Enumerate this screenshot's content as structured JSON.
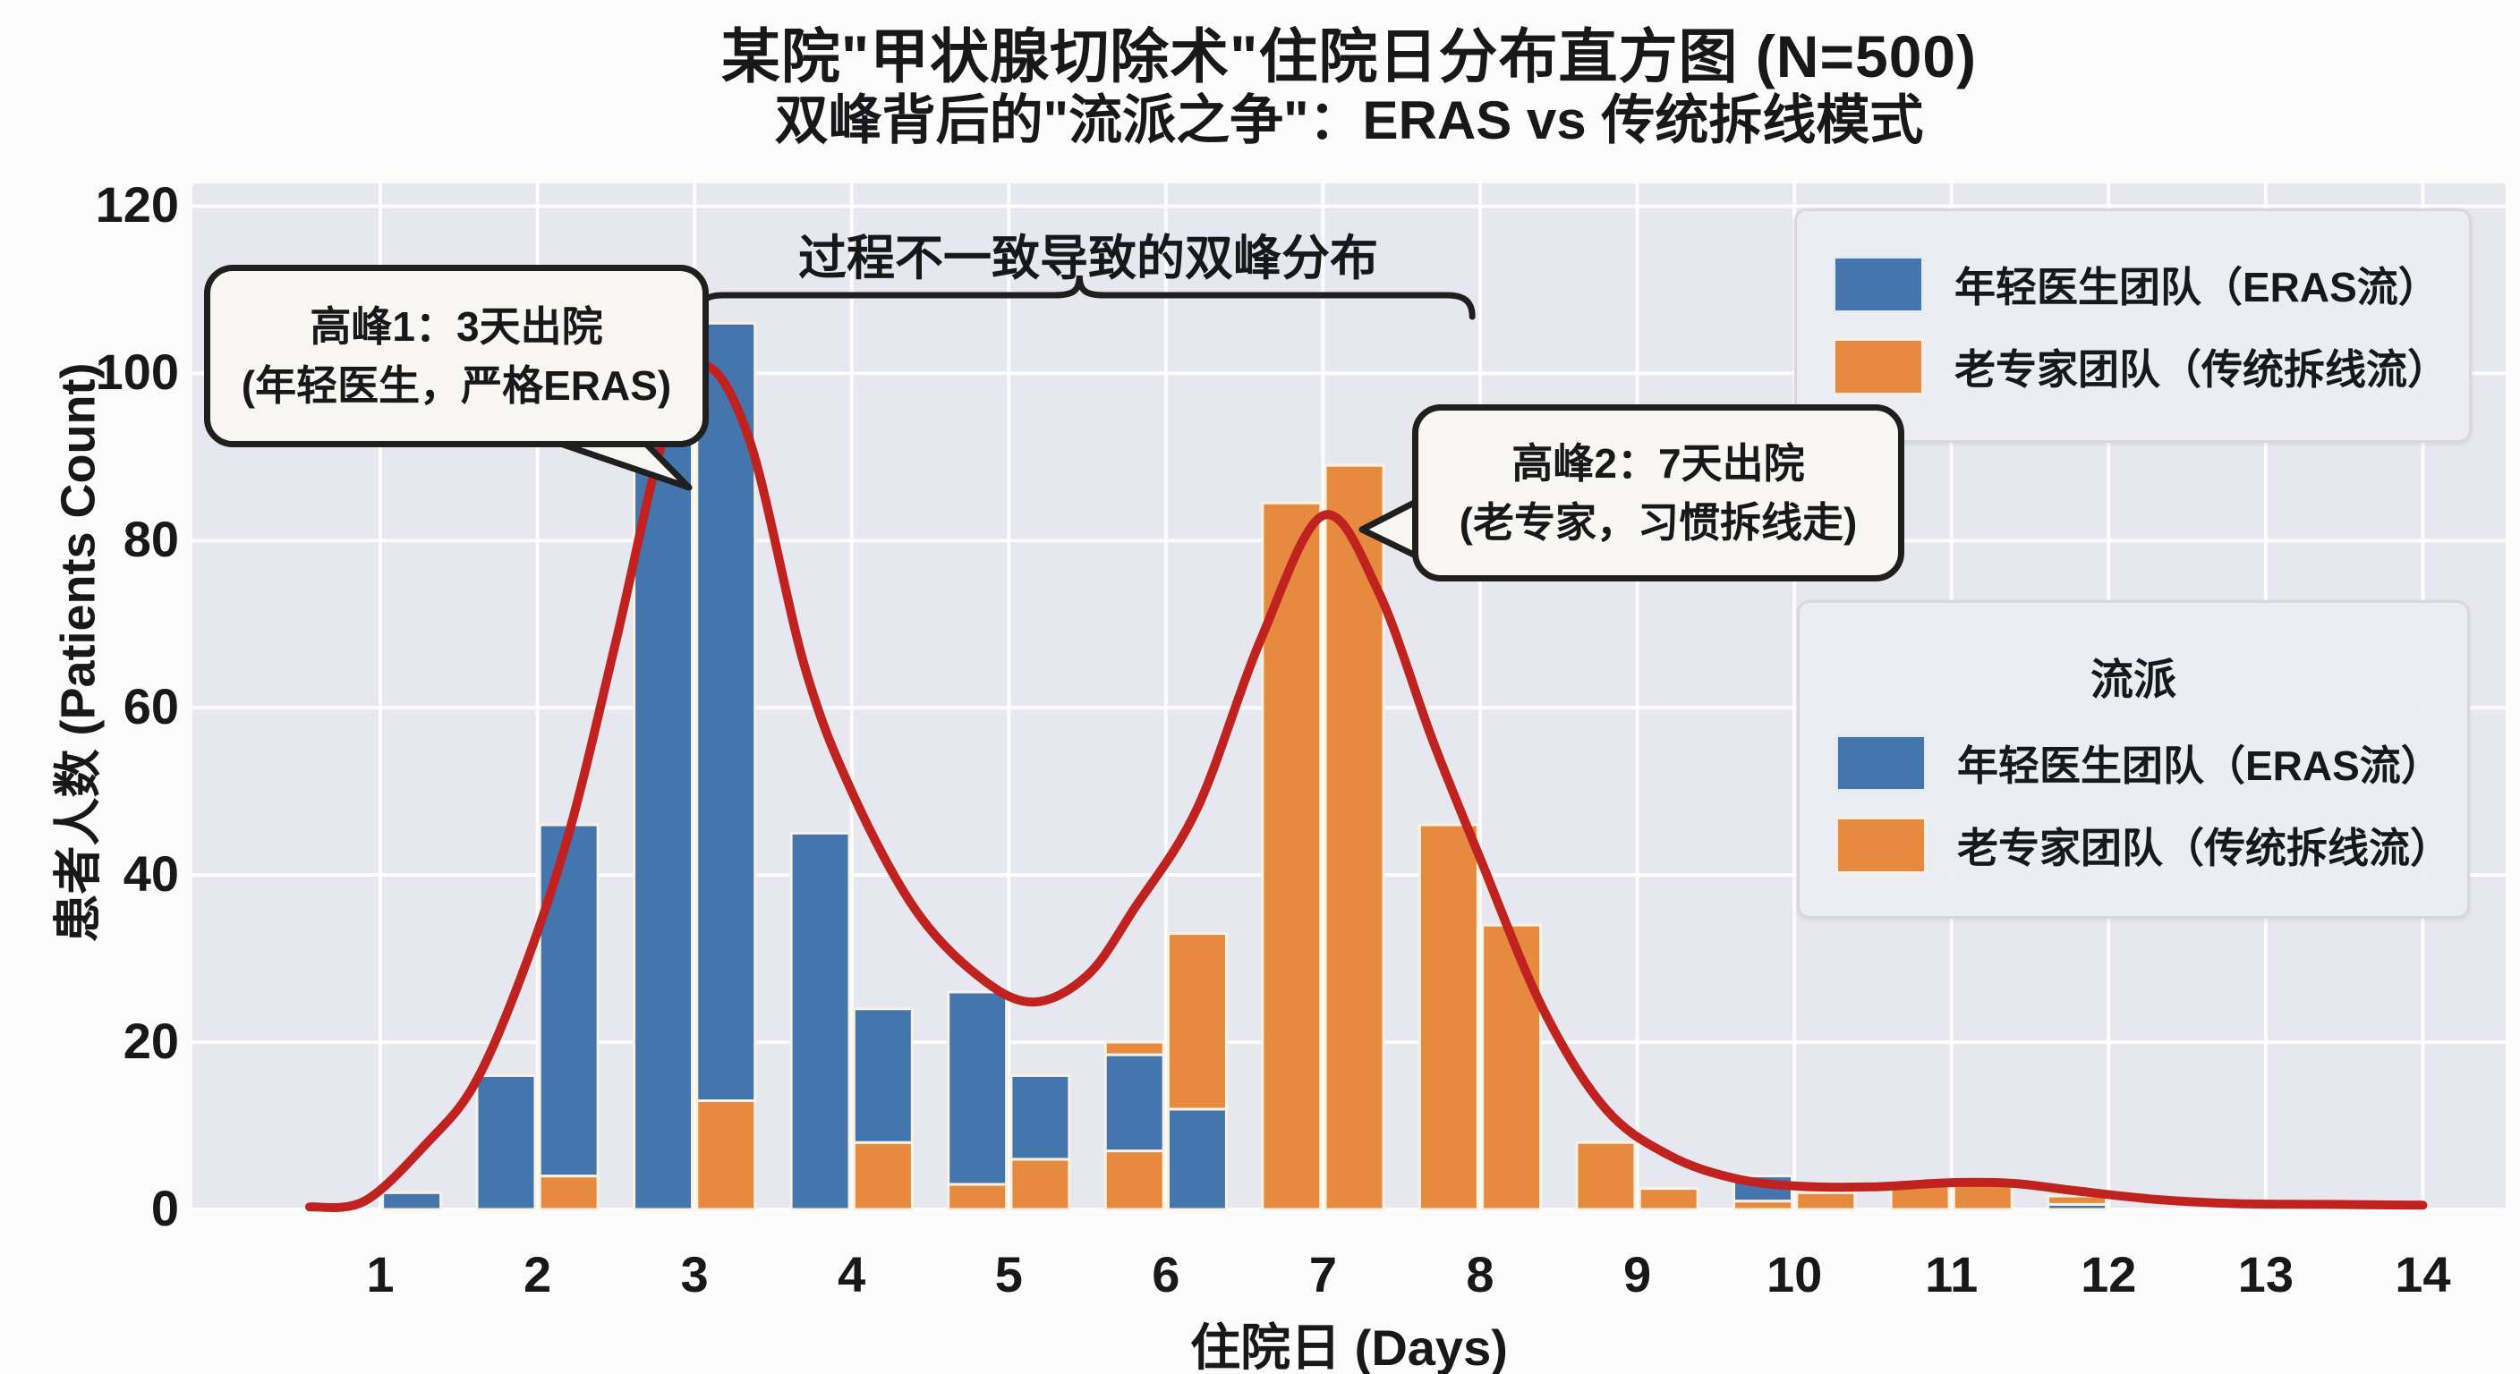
{
  "header": {
    "title": "某院\"甲状腺切除术\"住院日分布直方图 (N=500)",
    "subtitle": "双峰背后的\"流派之争\"：ERAS vs 传统拆线模式"
  },
  "axes": {
    "x_label": "住院日 (Days)",
    "y_label": "患者人数 (Patients Count)"
  },
  "legend_top": {
    "items": [
      {
        "color_key": "blue",
        "label": "年轻医生团队（ERAS流）"
      },
      {
        "color_key": "orange",
        "label": "老专家团队（传统拆线流）"
      }
    ]
  },
  "legend_flow": {
    "title": "流派",
    "items": [
      {
        "color_key": "blue",
        "label": "年轻医生团队（ERAS流）"
      },
      {
        "color_key": "orange",
        "label": "老专家团队（传统拆线流）"
      }
    ]
  },
  "annotations": {
    "bracket_label": "过程不一致导致的双峰分布",
    "callout1": {
      "line1": "高峰1：3天出院",
      "line2": "(年轻医生，严格ERAS)"
    },
    "callout2": {
      "line1": "高峰2：7天出院",
      "line2": "(老专家，习惯拆线走)"
    }
  },
  "colors": {
    "blue": "#4476ad",
    "orange": "#e68a3f",
    "red": "#c0231f",
    "plot_bg": "#e7e8ef",
    "grid": "#ffffff",
    "bar_edge": "#f7f2e2",
    "text": "#17181a"
  },
  "chart_data": {
    "type": "bar",
    "subtype": "stacked-histogram-with-kde",
    "title": "某院\"甲状腺切除术\"住院日分布直方图 (N=500)",
    "xlabel": "住院日 (Days)",
    "ylabel": "患者人数 (Patients Count)",
    "x_ticks": [
      1,
      2,
      3,
      4,
      5,
      6,
      7,
      8,
      9,
      10,
      11,
      12,
      13,
      14
    ],
    "y_ticks": [
      0,
      20,
      40,
      60,
      80,
      100,
      120
    ],
    "ylim": [
      0,
      122.7
    ],
    "xlim": [
      -0.2,
      14.55
    ],
    "grid": true,
    "legend_position": "upper-right and middle-right",
    "series_names": [
      "年轻医生团队（ERAS流）",
      "老专家团队（传统拆线流）"
    ],
    "bar_width_days": 0.37,
    "bars": [
      {
        "x": 1.2,
        "segments": [
          {
            "c": "blue",
            "v": 2
          }
        ]
      },
      {
        "x": 1.8,
        "segments": [
          {
            "c": "blue",
            "v": 16
          }
        ]
      },
      {
        "x": 2.2,
        "segments": [
          {
            "c": "orange",
            "v": 4
          },
          {
            "c": "blue",
            "v": 42
          }
        ]
      },
      {
        "x": 2.8,
        "segments": [
          {
            "c": "blue",
            "v": 100
          }
        ]
      },
      {
        "x": 3.2,
        "segments": [
          {
            "c": "orange",
            "v": 13
          },
          {
            "c": "blue",
            "v": 93
          }
        ]
      },
      {
        "x": 3.8,
        "segments": [
          {
            "c": "blue",
            "v": 45
          }
        ]
      },
      {
        "x": 4.2,
        "segments": [
          {
            "c": "orange",
            "v": 8
          },
          {
            "c": "blue",
            "v": 16
          }
        ]
      },
      {
        "x": 4.8,
        "segments": [
          {
            "c": "orange",
            "v": 3
          },
          {
            "c": "blue",
            "v": 23
          }
        ]
      },
      {
        "x": 5.2,
        "segments": [
          {
            "c": "orange",
            "v": 6
          },
          {
            "c": "blue",
            "v": 10
          }
        ]
      },
      {
        "x": 5.8,
        "segments": [
          {
            "c": "orange",
            "v": 7
          },
          {
            "c": "blue",
            "v": 11.5
          },
          {
            "c": "orange",
            "v": 1.5
          }
        ]
      },
      {
        "x": 6.2,
        "segments": [
          {
            "c": "blue",
            "v": 12
          },
          {
            "c": "orange",
            "v": 21
          }
        ]
      },
      {
        "x": 6.8,
        "segments": [
          {
            "c": "orange",
            "v": 84.5
          }
        ]
      },
      {
        "x": 7.2,
        "segments": [
          {
            "c": "orange",
            "v": 89
          }
        ]
      },
      {
        "x": 7.8,
        "segments": [
          {
            "c": "orange",
            "v": 46
          }
        ]
      },
      {
        "x": 8.2,
        "segments": [
          {
            "c": "orange",
            "v": 34
          }
        ]
      },
      {
        "x": 8.8,
        "segments": [
          {
            "c": "orange",
            "v": 8
          }
        ]
      },
      {
        "x": 9.2,
        "segments": [
          {
            "c": "orange",
            "v": 2.5
          }
        ]
      },
      {
        "x": 9.8,
        "segments": [
          {
            "c": "orange",
            "v": 1
          },
          {
            "c": "blue",
            "v": 3
          }
        ]
      },
      {
        "x": 10.2,
        "segments": [
          {
            "c": "orange",
            "v": 2
          }
        ]
      },
      {
        "x": 10.8,
        "segments": [
          {
            "c": "orange",
            "v": 3
          }
        ]
      },
      {
        "x": 11.2,
        "segments": [
          {
            "c": "orange",
            "v": 3.2
          }
        ]
      },
      {
        "x": 11.8,
        "segments": [
          {
            "c": "blue",
            "v": 0.6
          },
          {
            "c": "orange",
            "v": 1
          }
        ]
      }
    ],
    "kde_curve": {
      "color_key": "red",
      "peak1": {
        "x": 3.05,
        "y": 101
      },
      "valley": {
        "x": 5.15,
        "y": 24.8
      },
      "peak2": {
        "x": 7.0,
        "y": 83
      },
      "points": [
        [
          0.55,
          0.3
        ],
        [
          0.9,
          1
        ],
        [
          1.3,
          8
        ],
        [
          1.6,
          15
        ],
        [
          1.9,
          28
        ],
        [
          2.2,
          45
        ],
        [
          2.5,
          68
        ],
        [
          2.8,
          92
        ],
        [
          3.05,
          101
        ],
        [
          3.35,
          92
        ],
        [
          3.7,
          65
        ],
        [
          4.0,
          50
        ],
        [
          4.4,
          36
        ],
        [
          4.8,
          28
        ],
        [
          5.15,
          24.8
        ],
        [
          5.5,
          28
        ],
        [
          5.8,
          36
        ],
        [
          6.2,
          48
        ],
        [
          6.6,
          68
        ],
        [
          7.0,
          83
        ],
        [
          7.35,
          74
        ],
        [
          7.7,
          56
        ],
        [
          8.0,
          42
        ],
        [
          8.4,
          24
        ],
        [
          8.8,
          12
        ],
        [
          9.2,
          6.5
        ],
        [
          9.6,
          3.8
        ],
        [
          10.0,
          2.8
        ],
        [
          10.5,
          2.7
        ],
        [
          11.0,
          3.2
        ],
        [
          11.4,
          3.1
        ],
        [
          11.8,
          2.2
        ],
        [
          12.3,
          1.2
        ],
        [
          12.8,
          0.7
        ],
        [
          13.4,
          0.6
        ],
        [
          14.0,
          0.5
        ]
      ]
    },
    "bracket": {
      "from_x": 3.02,
      "to_x": 7.95,
      "mid_x": 5.45
    }
  }
}
